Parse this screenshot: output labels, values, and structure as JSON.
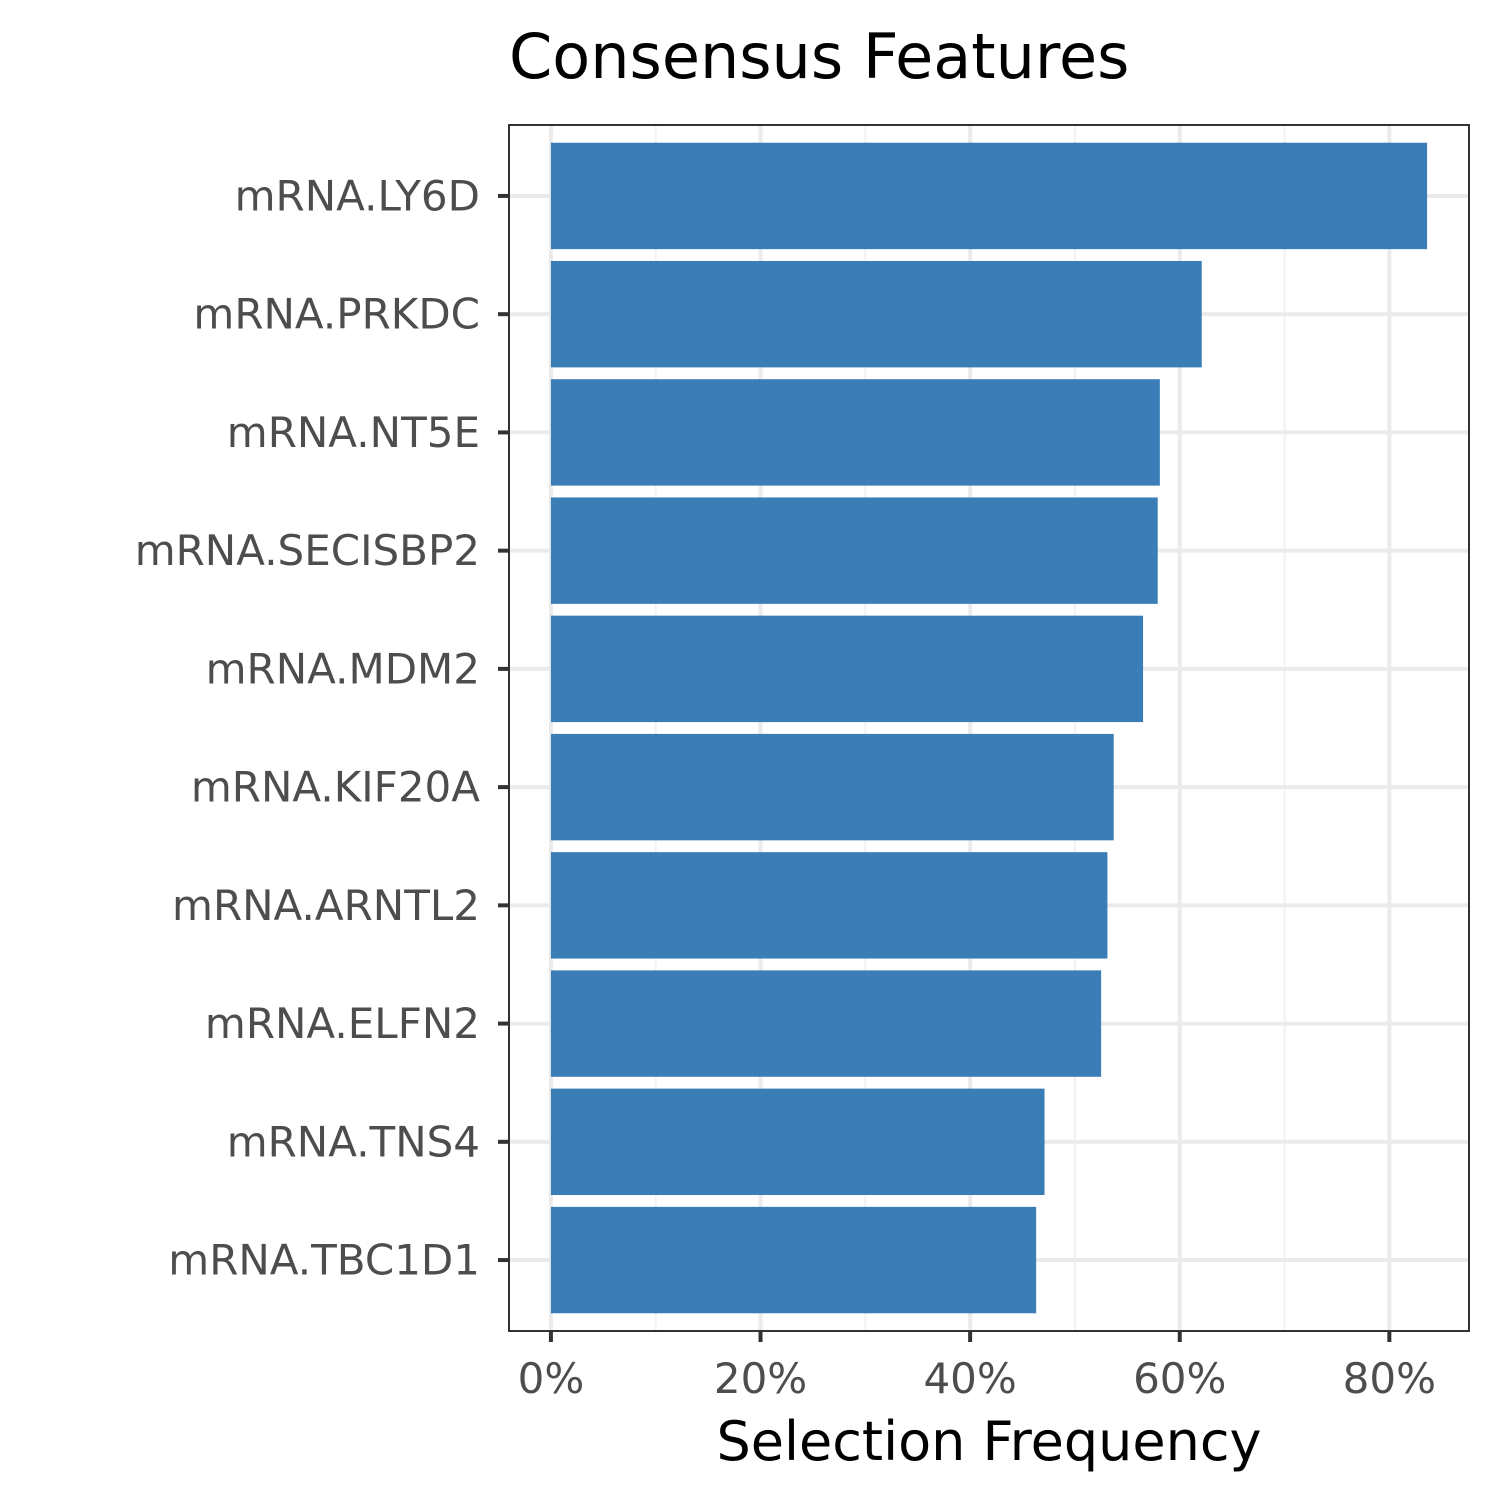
{
  "chart_data": {
    "type": "bar",
    "orientation": "horizontal",
    "title": "Consensus Features",
    "xlabel": "Selection Frequency",
    "ylabel": "",
    "categories": [
      "mRNA.LY6D",
      "mRNA.PRKDC",
      "mRNA.NT5E",
      "mRNA.SECISBP2",
      "mRNA.MDM2",
      "mRNA.KIF20A",
      "mRNA.ARNTL2",
      "mRNA.ELFN2",
      "mRNA.TNS4",
      "mRNA.TBC1D1"
    ],
    "values": [
      0.836,
      0.621,
      0.581,
      0.579,
      0.565,
      0.537,
      0.531,
      0.525,
      0.471,
      0.463
    ],
    "xlim": [
      -0.04,
      0.876
    ],
    "xticks": [
      0,
      0.2,
      0.4,
      0.6,
      0.8
    ],
    "xtick_labels": [
      "0%",
      "20%",
      "40%",
      "60%",
      "80%"
    ],
    "grid": true,
    "legend": "none",
    "colors": {
      "bar": "#3A7DB7",
      "panel_border": "#333333",
      "grid_major": "#EBEBEB",
      "grid_minor": "#F2F2F2",
      "axis_text": "#4D4D4D",
      "title_text": "#000000"
    }
  }
}
